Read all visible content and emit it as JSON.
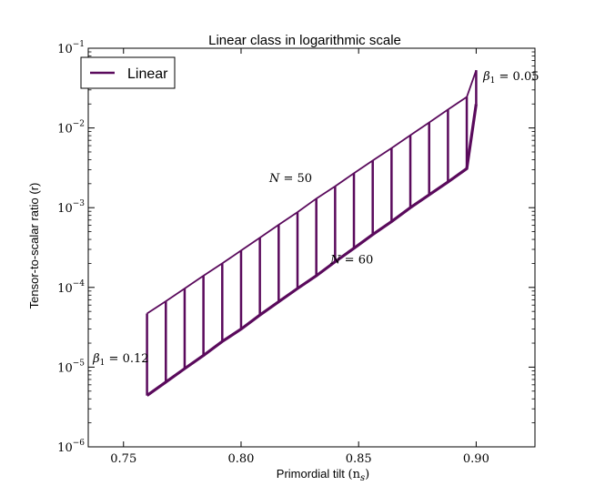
{
  "chart_data": {
    "type": "line",
    "title": "Linear class in logarithmic scale",
    "xlabel": "Primordial tilt",
    "xlabel_math": "(n",
    "xlabel_math_sub": "s",
    "xlabel_math_close": ")",
    "ylabel": "Tensor-to-scalar ratio (r)",
    "xlim": [
      0.735,
      0.925
    ],
    "ylim": [
      1e-06,
      0.1
    ],
    "yscale": "log",
    "grid": false,
    "legend": {
      "placement": "top-left",
      "entries": [
        "Linear"
      ]
    },
    "x_ticks": [
      {
        "value": 0.75,
        "label": "0.75"
      },
      {
        "value": 0.8,
        "label": "0.80"
      },
      {
        "value": 0.85,
        "label": "0.85"
      },
      {
        "value": 0.9,
        "label": "0.90"
      }
    ],
    "y_ticks": [
      {
        "value": 1e-06,
        "base": "10",
        "exp": "−6"
      },
      {
        "value": 1e-05,
        "base": "10",
        "exp": "−5"
      },
      {
        "value": 0.0001,
        "base": "10",
        "exp": "−4"
      },
      {
        "value": 0.001,
        "base": "10",
        "exp": "−3"
      },
      {
        "value": 0.01,
        "base": "10",
        "exp": "−2"
      },
      {
        "value": 0.1,
        "base": "10",
        "exp": "−1"
      }
    ],
    "color": "#5a0a5c",
    "series": [
      {
        "name": "Linear",
        "segments": [
          {
            "x": 0.76,
            "r_N50": 4.7e-05,
            "r_N60": 4.4e-06
          },
          {
            "x": 0.768,
            "r_N50": 6.7e-05,
            "r_N60": 6.5e-06
          },
          {
            "x": 0.776,
            "r_N50": 9.7e-05,
            "r_N60": 9.6e-06
          },
          {
            "x": 0.784,
            "r_N50": 0.00014,
            "r_N60": 1.4e-05
          },
          {
            "x": 0.792,
            "r_N50": 0.0002,
            "r_N60": 2.1e-05
          },
          {
            "x": 0.8,
            "r_N50": 0.00029,
            "r_N60": 3e-05
          },
          {
            "x": 0.808,
            "r_N50": 0.00042,
            "r_N60": 4.5e-05
          },
          {
            "x": 0.816,
            "r_N50": 0.00061,
            "r_N60": 6.6e-05
          },
          {
            "x": 0.824,
            "r_N50": 0.00088,
            "r_N60": 9.7e-05
          },
          {
            "x": 0.832,
            "r_N50": 0.0013,
            "r_N60": 0.00014
          },
          {
            "x": 0.84,
            "r_N50": 0.00185,
            "r_N60": 0.00021
          },
          {
            "x": 0.848,
            "r_N50": 0.0027,
            "r_N60": 0.00031
          },
          {
            "x": 0.856,
            "r_N50": 0.0039,
            "r_N60": 0.00046
          },
          {
            "x": 0.864,
            "r_N50": 0.0056,
            "r_N60": 0.00067
          },
          {
            "x": 0.872,
            "r_N50": 0.0081,
            "r_N60": 0.001
          },
          {
            "x": 0.88,
            "r_N50": 0.0117,
            "r_N60": 0.00145
          },
          {
            "x": 0.888,
            "r_N50": 0.017,
            "r_N60": 0.0021
          },
          {
            "x": 0.896,
            "r_N50": 0.0245,
            "r_N60": 0.0031
          },
          {
            "x": 0.9,
            "r_N50": 0.053,
            "r_N60": 0.02
          }
        ]
      }
    ],
    "annotations": [
      {
        "id": "n50",
        "text_var": "N",
        "text_rest": " = 50",
        "x": 0.812,
        "r": 0.0021
      },
      {
        "id": "n60",
        "text_var": "N",
        "text_rest": " = 60",
        "x": 0.838,
        "r": 0.0002
      },
      {
        "id": "beta-top",
        "text_var": "β",
        "text_sub": "1",
        "text_rest": " = 0.05",
        "x": 0.903,
        "r": 0.04
      },
      {
        "id": "beta-bottom",
        "text_var": "β",
        "text_sub": "1",
        "text_rest": " = 0.12",
        "x": 0.737,
        "r": 1.15e-05
      }
    ]
  }
}
